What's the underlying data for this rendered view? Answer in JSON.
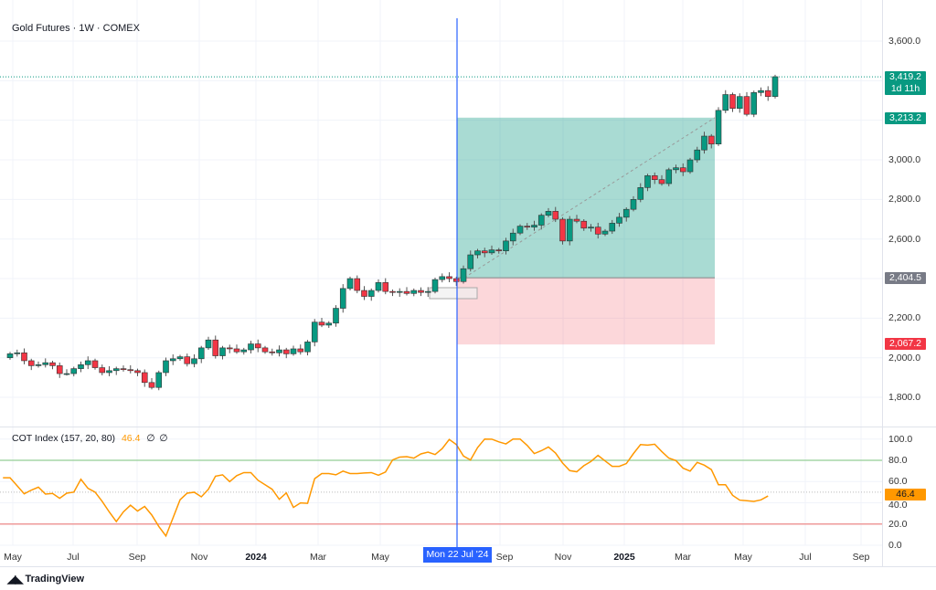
{
  "header": {
    "title": "Gold Futures · 1W · COMEX"
  },
  "indicator": {
    "name": "COT Index (157, 20, 80)",
    "value": "46.4",
    "icon1": "∅",
    "icon2": "∅"
  },
  "price_axis": {
    "labels": [
      "3,600.0",
      "3,000.0",
      "2,800.0",
      "2,600.0",
      "2,200.0",
      "2,000.0",
      "1,800.0"
    ]
  },
  "price_tags": {
    "last": {
      "value": "3,419.2",
      "countdown": "1d 11h",
      "color": "#089981"
    },
    "target": {
      "value": "3,213.2",
      "color": "#089981"
    },
    "entry": {
      "value": "2,404.5",
      "color": "#787b86"
    },
    "stop": {
      "value": "2,067.2",
      "color": "#f23645"
    }
  },
  "cot_axis": {
    "labels": [
      "100.0",
      "80.0",
      "60.0",
      "40.0",
      "20.0",
      "0.0"
    ],
    "tag": "46.4",
    "tag_color": "#ff9800"
  },
  "time_axis": {
    "labels": [
      "May",
      "Jul",
      "Sep",
      "Nov",
      "2024",
      "Mar",
      "May",
      "Sep",
      "Nov",
      "2025",
      "Mar",
      "May",
      "Jul",
      "Sep"
    ],
    "crosshair": "Mon 22 Jul '24"
  },
  "footer": {
    "brand": "TradingView"
  },
  "colors": {
    "up": "#089981",
    "down": "#f23645",
    "cot_line": "#ff9800",
    "crosshair": "#2962ff"
  },
  "chart_data": [
    {
      "type": "candlestick",
      "title": "Gold Futures · 1W · COMEX",
      "interval": "1W",
      "first_open": 2000,
      "closes": [
        2020,
        2025,
        1985,
        1960,
        1965,
        1975,
        1960,
        1920,
        1920,
        1945,
        1965,
        1985,
        1950,
        1925,
        1935,
        1945,
        1940,
        1935,
        1925,
        1875,
        1850,
        1925,
        1985,
        1995,
        2005,
        1970,
        1995,
        2050,
        2090,
        2010,
        2050,
        2045,
        2030,
        2040,
        2070,
        2050,
        2030,
        2025,
        2040,
        2020,
        2045,
        2030,
        2080,
        2180,
        2165,
        2175,
        2250,
        2350,
        2400,
        2340,
        2310,
        2340,
        2380,
        2335,
        2330,
        2335,
        2325,
        2340,
        2330,
        2335,
        2395,
        2410,
        2400,
        2385,
        2450,
        2520,
        2540,
        2530,
        2545,
        2540,
        2590,
        2630,
        2665,
        2660,
        2670,
        2720,
        2740,
        2700,
        2590,
        2700,
        2690,
        2655,
        2660,
        2625,
        2640,
        2680,
        2710,
        2750,
        2800,
        2860,
        2920,
        2900,
        2880,
        2950,
        2960,
        2940,
        3000,
        3050,
        3120,
        3080,
        3250,
        3330,
        3260,
        3320,
        3230,
        3340,
        3350,
        3320,
        3420
      ],
      "ylim": [
        1700,
        3700
      ],
      "last_price": 3419.2,
      "position": {
        "entry": 2404.5,
        "target": 3213.2,
        "stop": 2067.2
      }
    },
    {
      "type": "line",
      "title": "COT Index (157, 20, 80)",
      "values": [
        63.5,
        63.5,
        56,
        48.4,
        51.9,
        54.7,
        48.2,
        48.8,
        44.2,
        49,
        50,
        62.1,
        53.6,
        50,
        41.3,
        31.4,
        22.3,
        31.4,
        37.7,
        32.2,
        36.5,
        28.5,
        17.7,
        8.7,
        25.7,
        42.8,
        49,
        49.9,
        45.6,
        52.7,
        65,
        66.3,
        59.9,
        65.5,
        68.4,
        68.4,
        61.2,
        57,
        52.7,
        43.3,
        49.3,
        35.6,
        39.9,
        39.5,
        62.7,
        67.5,
        67.5,
        66.3,
        69.8,
        67.5,
        67.5,
        68,
        68.4,
        65.9,
        69,
        80.3,
        83,
        83.4,
        82,
        86,
        87.7,
        85.4,
        91,
        99.6,
        94.8,
        84,
        80.3,
        92,
        100,
        99.9,
        97.3,
        95.4,
        100,
        100,
        94,
        86.3,
        89,
        92.5,
        86.8,
        77.4,
        70.3,
        69.2,
        74.9,
        78.9,
        84.6,
        79.4,
        74.3,
        74.3,
        76.9,
        86.3,
        94.8,
        94.3,
        95.1,
        88.2,
        82,
        79.7,
        72.6,
        69.8,
        78,
        75.4,
        71.2,
        57,
        57,
        47,
        42.5,
        41.9,
        41.3,
        42.7,
        46.4
      ],
      "upper_band": 80,
      "lower_band": 20,
      "ylim": [
        0,
        100
      ]
    }
  ]
}
